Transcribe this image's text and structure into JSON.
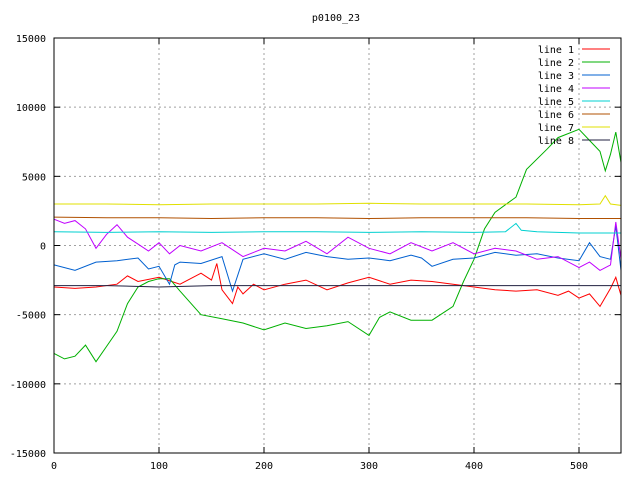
{
  "chart_data": {
    "type": "line",
    "title": "p0100_23",
    "xlabel": "",
    "ylabel": "",
    "xlim": [
      0,
      540
    ],
    "ylim": [
      -15000,
      15000
    ],
    "x_ticks": [
      0,
      100,
      200,
      300,
      400,
      500
    ],
    "y_ticks": [
      -15000,
      -10000,
      -5000,
      0,
      5000,
      10000,
      15000
    ],
    "grid": true,
    "legend_position": "top-right",
    "series": [
      {
        "name": "line 1",
        "color": "#ff0000",
        "points": [
          [
            0,
            -3000
          ],
          [
            20,
            -3100
          ],
          [
            40,
            -3000
          ],
          [
            60,
            -2800
          ],
          [
            70,
            -2200
          ],
          [
            80,
            -2600
          ],
          [
            100,
            -2300
          ],
          [
            120,
            -2800
          ],
          [
            140,
            -2000
          ],
          [
            150,
            -2500
          ],
          [
            155,
            -1300
          ],
          [
            160,
            -3200
          ],
          [
            170,
            -4200
          ],
          [
            175,
            -3000
          ],
          [
            180,
            -3500
          ],
          [
            190,
            -2800
          ],
          [
            200,
            -3200
          ],
          [
            220,
            -2800
          ],
          [
            240,
            -2500
          ],
          [
            260,
            -3200
          ],
          [
            280,
            -2700
          ],
          [
            300,
            -2300
          ],
          [
            320,
            -2800
          ],
          [
            340,
            -2500
          ],
          [
            360,
            -2600
          ],
          [
            380,
            -2800
          ],
          [
            400,
            -3000
          ],
          [
            420,
            -3200
          ],
          [
            440,
            -3300
          ],
          [
            460,
            -3200
          ],
          [
            480,
            -3600
          ],
          [
            490,
            -3300
          ],
          [
            500,
            -3800
          ],
          [
            510,
            -3500
          ],
          [
            520,
            -4400
          ],
          [
            530,
            -3100
          ],
          [
            535,
            -2300
          ],
          [
            540,
            -3600
          ]
        ]
      },
      {
        "name": "line 2",
        "color": "#00b000",
        "points": [
          [
            0,
            -7800
          ],
          [
            10,
            -8200
          ],
          [
            20,
            -8000
          ],
          [
            30,
            -7200
          ],
          [
            40,
            -8400
          ],
          [
            50,
            -7300
          ],
          [
            60,
            -6200
          ],
          [
            70,
            -4200
          ],
          [
            80,
            -3000
          ],
          [
            90,
            -2600
          ],
          [
            100,
            -2400
          ],
          [
            110,
            -2400
          ],
          [
            120,
            -3300
          ],
          [
            140,
            -5000
          ],
          [
            160,
            -5300
          ],
          [
            180,
            -5600
          ],
          [
            200,
            -6100
          ],
          [
            220,
            -5600
          ],
          [
            240,
            -6000
          ],
          [
            260,
            -5800
          ],
          [
            280,
            -5500
          ],
          [
            300,
            -6500
          ],
          [
            310,
            -5200
          ],
          [
            320,
            -4800
          ],
          [
            340,
            -5400
          ],
          [
            360,
            -5400
          ],
          [
            380,
            -4400
          ],
          [
            390,
            -2600
          ],
          [
            400,
            -1000
          ],
          [
            410,
            1200
          ],
          [
            420,
            2400
          ],
          [
            440,
            3500
          ],
          [
            450,
            5500
          ],
          [
            470,
            7000
          ],
          [
            480,
            7800
          ],
          [
            500,
            8400
          ],
          [
            510,
            7600
          ],
          [
            520,
            6800
          ],
          [
            525,
            5400
          ],
          [
            530,
            6600
          ],
          [
            535,
            8200
          ],
          [
            540,
            6000
          ]
        ]
      },
      {
        "name": "line 3",
        "color": "#0060d0",
        "points": [
          [
            0,
            -1400
          ],
          [
            20,
            -1800
          ],
          [
            40,
            -1200
          ],
          [
            60,
            -1100
          ],
          [
            80,
            -900
          ],
          [
            90,
            -1700
          ],
          [
            100,
            -1500
          ],
          [
            110,
            -2800
          ],
          [
            115,
            -1400
          ],
          [
            120,
            -1200
          ],
          [
            140,
            -1300
          ],
          [
            160,
            -800
          ],
          [
            170,
            -3300
          ],
          [
            180,
            -1000
          ],
          [
            200,
            -600
          ],
          [
            220,
            -1000
          ],
          [
            240,
            -500
          ],
          [
            260,
            -800
          ],
          [
            280,
            -1000
          ],
          [
            300,
            -900
          ],
          [
            320,
            -1100
          ],
          [
            340,
            -700
          ],
          [
            350,
            -900
          ],
          [
            360,
            -1500
          ],
          [
            380,
            -1000
          ],
          [
            400,
            -900
          ],
          [
            420,
            -500
          ],
          [
            440,
            -700
          ],
          [
            460,
            -600
          ],
          [
            480,
            -900
          ],
          [
            500,
            -1100
          ],
          [
            510,
            200
          ],
          [
            520,
            -800
          ],
          [
            530,
            -1000
          ],
          [
            535,
            1400
          ],
          [
            540,
            -1800
          ]
        ]
      },
      {
        "name": "line 4",
        "color": "#c000ff",
        "points": [
          [
            0,
            1900
          ],
          [
            10,
            1600
          ],
          [
            20,
            1800
          ],
          [
            30,
            1200
          ],
          [
            40,
            -200
          ],
          [
            50,
            800
          ],
          [
            60,
            1500
          ],
          [
            70,
            600
          ],
          [
            80,
            100
          ],
          [
            90,
            -400
          ],
          [
            100,
            200
          ],
          [
            110,
            -600
          ],
          [
            120,
            0
          ],
          [
            140,
            -400
          ],
          [
            160,
            200
          ],
          [
            180,
            -800
          ],
          [
            200,
            -200
          ],
          [
            220,
            -400
          ],
          [
            240,
            300
          ],
          [
            260,
            -600
          ],
          [
            280,
            600
          ],
          [
            300,
            -200
          ],
          [
            320,
            -600
          ],
          [
            340,
            200
          ],
          [
            360,
            -400
          ],
          [
            380,
            200
          ],
          [
            400,
            -600
          ],
          [
            420,
            -200
          ],
          [
            440,
            -400
          ],
          [
            460,
            -1000
          ],
          [
            480,
            -800
          ],
          [
            500,
            -1600
          ],
          [
            510,
            -1200
          ],
          [
            520,
            -1800
          ],
          [
            530,
            -1400
          ],
          [
            535,
            1700
          ],
          [
            540,
            -1000
          ]
        ]
      },
      {
        "name": "line 5",
        "color": "#00d0d0",
        "points": [
          [
            0,
            1000
          ],
          [
            50,
            950
          ],
          [
            100,
            1000
          ],
          [
            150,
            950
          ],
          [
            200,
            1000
          ],
          [
            250,
            1000
          ],
          [
            300,
            950
          ],
          [
            350,
            1000
          ],
          [
            400,
            950
          ],
          [
            430,
            1000
          ],
          [
            440,
            1600
          ],
          [
            445,
            1100
          ],
          [
            460,
            1000
          ],
          [
            500,
            900
          ],
          [
            540,
            900
          ]
        ]
      },
      {
        "name": "line 6",
        "color": "#b05000",
        "points": [
          [
            0,
            2050
          ],
          [
            50,
            2000
          ],
          [
            100,
            2000
          ],
          [
            150,
            1950
          ],
          [
            200,
            2000
          ],
          [
            250,
            2000
          ],
          [
            300,
            1950
          ],
          [
            350,
            2000
          ],
          [
            400,
            2000
          ],
          [
            450,
            2000
          ],
          [
            500,
            1950
          ],
          [
            540,
            1950
          ]
        ]
      },
      {
        "name": "line 7",
        "color": "#e0e000",
        "points": [
          [
            0,
            3000
          ],
          [
            50,
            3000
          ],
          [
            100,
            2950
          ],
          [
            150,
            3000
          ],
          [
            200,
            3000
          ],
          [
            250,
            3000
          ],
          [
            300,
            3050
          ],
          [
            350,
            3000
          ],
          [
            400,
            3000
          ],
          [
            450,
            3000
          ],
          [
            500,
            2950
          ],
          [
            520,
            3000
          ],
          [
            525,
            3600
          ],
          [
            530,
            3000
          ],
          [
            540,
            2900
          ]
        ]
      },
      {
        "name": "line 8",
        "color": "#202040",
        "points": [
          [
            0,
            -2900
          ],
          [
            50,
            -2900
          ],
          [
            100,
            -3000
          ],
          [
            150,
            -2900
          ],
          [
            200,
            -2900
          ],
          [
            250,
            -2900
          ],
          [
            300,
            -2900
          ],
          [
            350,
            -2900
          ],
          [
            400,
            -2900
          ],
          [
            450,
            -2900
          ],
          [
            500,
            -2900
          ],
          [
            540,
            -2900
          ]
        ]
      }
    ]
  }
}
